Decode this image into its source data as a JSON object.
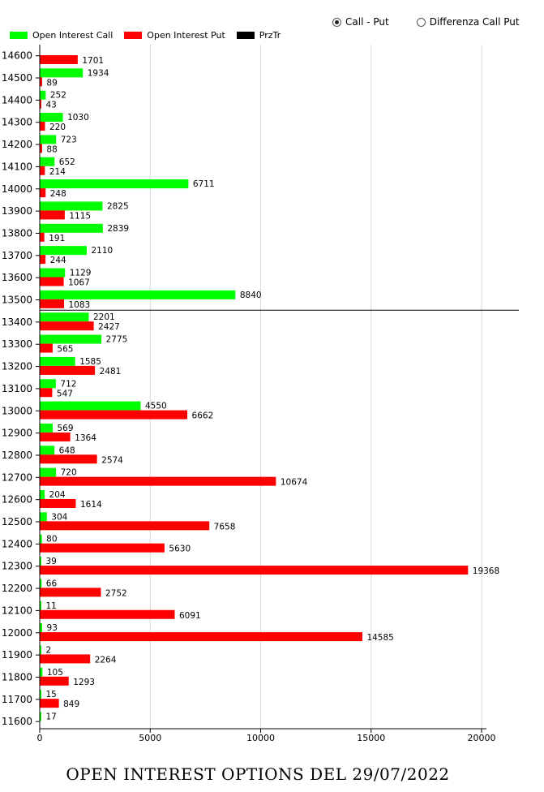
{
  "controls": {
    "options": [
      {
        "label": "Call - Put",
        "selected": true
      },
      {
        "label": "Differenza Call Put",
        "selected": false
      }
    ]
  },
  "legend": [
    {
      "label": "Open Interest Call",
      "color": "#00ff00"
    },
    {
      "label": "Open Interest Put",
      "color": "#ff0000"
    },
    {
      "label": "PrzTr",
      "color": "#000000"
    }
  ],
  "caption": "OPEN INTEREST OPTIONS DEL 29/07/2022",
  "chart_data": {
    "type": "bar",
    "orientation": "horizontal",
    "categories": [
      14600,
      14500,
      14400,
      14300,
      14200,
      14100,
      14000,
      13900,
      13800,
      13700,
      13600,
      13500,
      13400,
      13300,
      13200,
      13100,
      13000,
      12900,
      12800,
      12700,
      12600,
      12500,
      12400,
      12300,
      12200,
      12100,
      12000,
      11900,
      11800,
      11700,
      11600
    ],
    "series": [
      {
        "name": "Open Interest Call",
        "color": "#00ff00",
        "values": [
          null,
          1934,
          252,
          1030,
          723,
          652,
          6711,
          2825,
          2839,
          2110,
          1129,
          8840,
          2201,
          2775,
          1585,
          712,
          4550,
          569,
          648,
          720,
          204,
          304,
          80,
          39,
          66,
          11,
          93,
          2,
          105,
          15,
          17
        ]
      },
      {
        "name": "Open Interest Put",
        "color": "#ff0000",
        "values": [
          1701,
          89,
          43,
          220,
          88,
          214,
          248,
          1115,
          191,
          244,
          1067,
          1083,
          2427,
          565,
          2481,
          547,
          6662,
          1364,
          2574,
          10674,
          1614,
          7658,
          5630,
          19368,
          2752,
          6091,
          14585,
          2264,
          1293,
          849,
          null
        ]
      }
    ],
    "reference_line": {
      "name": "PrzTr",
      "position_between": [
        13500,
        13400
      ],
      "color": "#000000"
    },
    "xticks": [
      0,
      5000,
      10000,
      15000,
      20000
    ],
    "xlim": [
      0,
      22000
    ],
    "grid": true,
    "legend_position": "top-left"
  }
}
